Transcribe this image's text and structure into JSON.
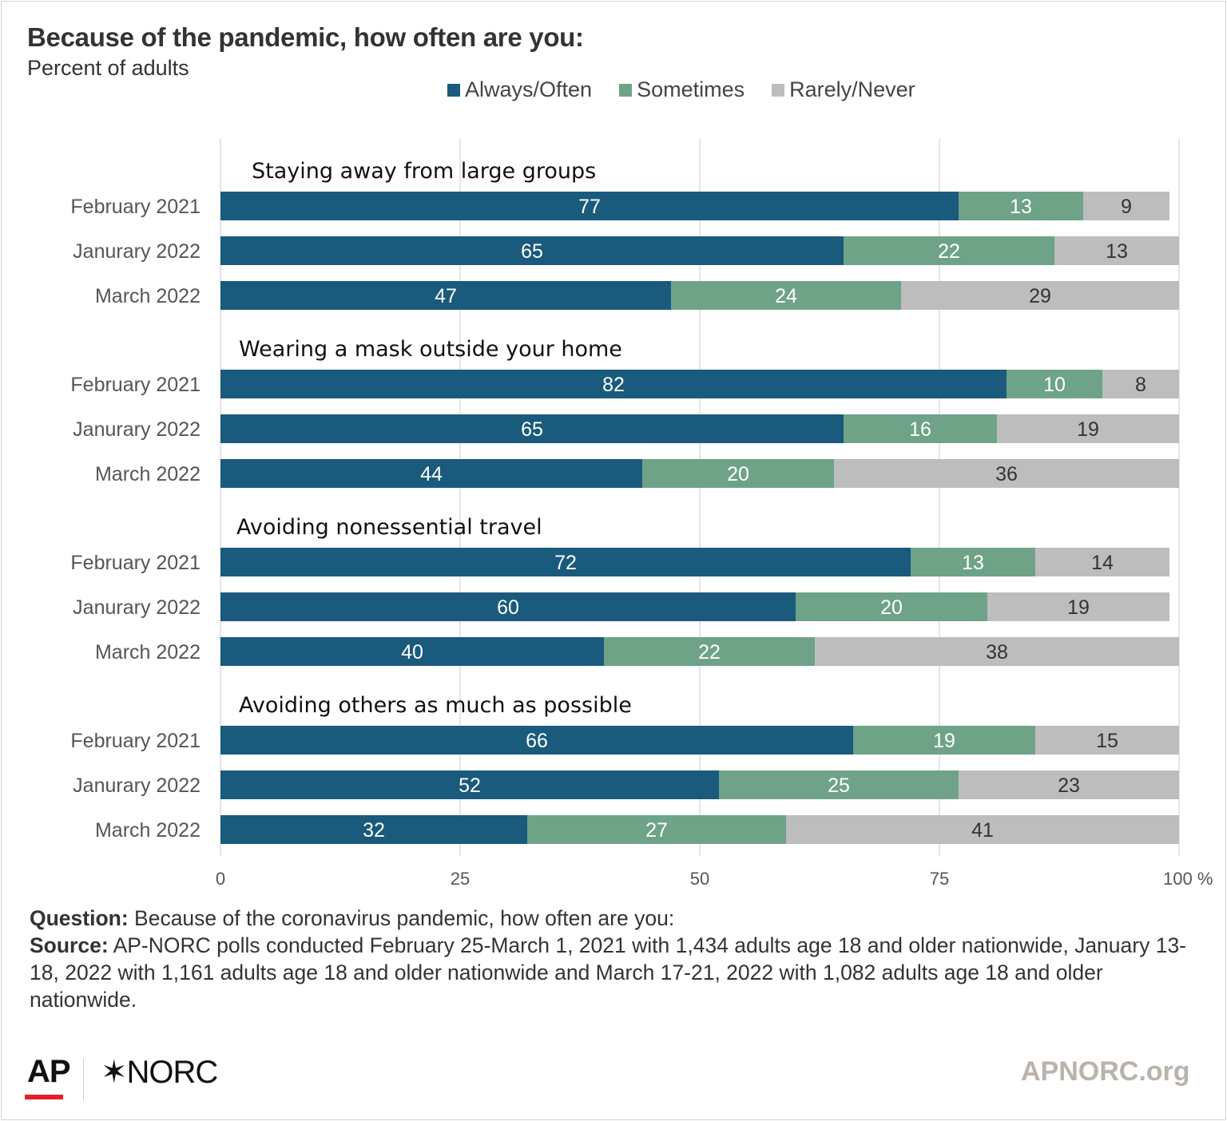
{
  "title": "Because of the pandemic, how often are you:",
  "subtitle": "Percent of adults",
  "legend": [
    {
      "label": "Always/Often",
      "color": "#1a5a7c"
    },
    {
      "label": "Sometimes",
      "color": "#6fa387"
    },
    {
      "label": "Rarely/Never",
      "color": "#bdbdbd"
    }
  ],
  "chart_data": {
    "type": "bar",
    "orientation": "horizontal",
    "stacked": true,
    "xlim": [
      0,
      100
    ],
    "x_ticks": [
      "0",
      "25",
      "50",
      "75",
      "100 %"
    ],
    "grid": true,
    "legend_position": "top",
    "series_names": [
      "Always/Often",
      "Sometimes",
      "Rarely/Never"
    ],
    "colors": [
      "#1a5a7c",
      "#6fa387",
      "#bdbdbd"
    ],
    "groups": [
      {
        "title": "Staying away from large groups",
        "rows": [
          {
            "label": "February 2021",
            "values": [
              77,
              13,
              9
            ]
          },
          {
            "label": "Janurary 2022",
            "values": [
              65,
              22,
              13
            ]
          },
          {
            "label": "March 2022",
            "values": [
              47,
              24,
              29
            ]
          }
        ]
      },
      {
        "title": "Wearing a mask outside your home",
        "rows": [
          {
            "label": "February 2021",
            "values": [
              82,
              10,
              8
            ]
          },
          {
            "label": "Janurary 2022",
            "values": [
              65,
              16,
              19
            ]
          },
          {
            "label": "March 2022",
            "values": [
              44,
              20,
              36
            ]
          }
        ]
      },
      {
        "title": "Avoiding nonessential travel",
        "rows": [
          {
            "label": "February 2021",
            "values": [
              72,
              13,
              14
            ]
          },
          {
            "label": "Janurary 2022",
            "values": [
              60,
              20,
              19
            ]
          },
          {
            "label": "March 2022",
            "values": [
              40,
              22,
              38
            ]
          }
        ]
      },
      {
        "title": "Avoiding others as much as possible",
        "rows": [
          {
            "label": "February 2021",
            "values": [
              66,
              19,
              15
            ]
          },
          {
            "label": "Janurary 2022",
            "values": [
              52,
              25,
              23
            ]
          },
          {
            "label": "March 2022",
            "values": [
              32,
              27,
              41
            ]
          }
        ]
      }
    ]
  },
  "notes": {
    "question_label": "Question:",
    "question_text": " Because of the coronavirus pandemic, how often are you:",
    "source_label": "Source:",
    "source_text": "  AP-NORC polls conducted February 25-March 1, 2021 with 1,434 adults age 18 and older nationwide, January 13-18, 2022 with 1,161 adults age 18 and older nationwide and March 17-21, 2022 with 1,082 adults age 18 and older nationwide."
  },
  "footer": {
    "logo_ap": "AP",
    "logo_norc": "✶NORC",
    "site": "APNORC.org",
    "accent_color": "#e41e26"
  }
}
